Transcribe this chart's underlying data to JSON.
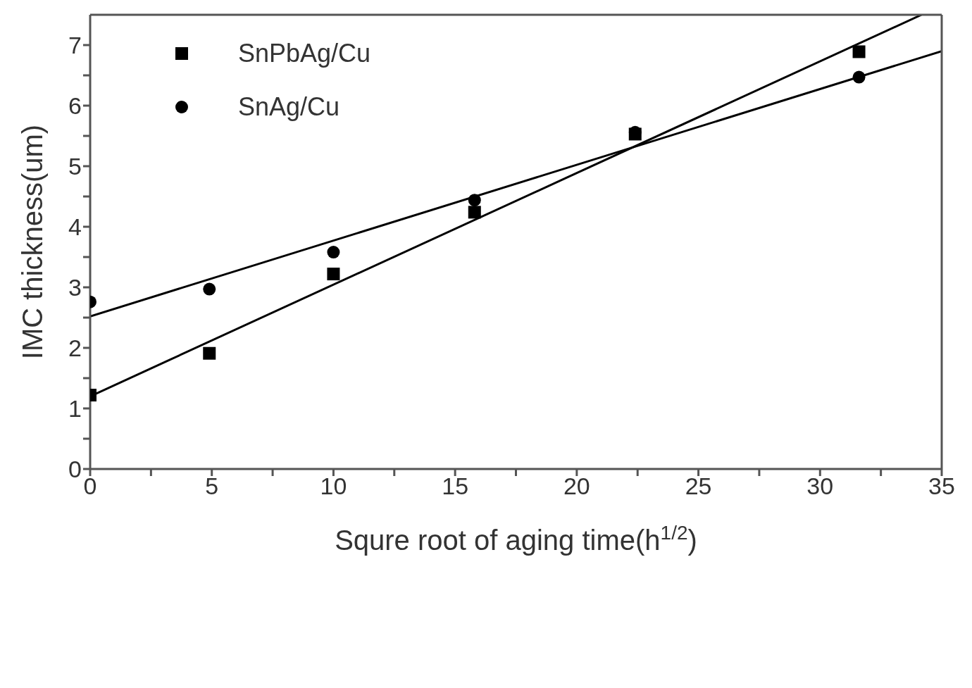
{
  "chart_data": {
    "type": "scatter",
    "xlabel": "Squre root of aging time(h$^{1/2}$)",
    "ylabel": "IMC thickness(um)",
    "xlim": [
      0,
      35
    ],
    "ylim": [
      0,
      7.5
    ],
    "xticks": [
      0,
      {
        "value": 2.5,
        "label": null
      },
      5,
      {
        "value": 7.5,
        "label": null
      },
      10,
      {
        "value": 12.5,
        "label": null
      },
      15,
      {
        "value": 17.5,
        "label": null
      },
      20,
      {
        "value": 22.5,
        "label": null
      },
      25,
      {
        "value": 27.5,
        "label": null
      },
      30,
      {
        "value": 32.5,
        "label": null
      },
      35
    ],
    "yticks": [
      0,
      {
        "value": 0.5,
        "label": null
      },
      1,
      {
        "value": 1.5,
        "label": null
      },
      2,
      {
        "value": 2.5,
        "label": null
      },
      3,
      {
        "value": 3.5,
        "label": null
      },
      4,
      {
        "value": 4.5,
        "label": null
      },
      5,
      {
        "value": 5.5,
        "label": null
      },
      6,
      {
        "value": 6.5,
        "label": null
      },
      7
    ],
    "legend": "top left",
    "series": [
      {
        "name": "SnPbAg/Cu",
        "color": "#000000",
        "marker": "square",
        "x": [
          0,
          4.9,
          10,
          15.8,
          22.4,
          31.6
        ],
        "values": [
          1.22,
          1.91,
          3.22,
          4.24,
          5.53,
          6.89
        ]
      },
      {
        "name": "SnAg/Cu",
        "color": "#000000",
        "marker": "circle",
        "x": [
          0,
          4.9,
          10,
          15.8,
          22.4,
          31.6
        ],
        "values": [
          2.76,
          2.97,
          3.58,
          4.44,
          5.56,
          6.47
        ]
      },
      {
        "type": "line",
        "color": "#000000",
        "line_style": "solid",
        "marker": "none",
        "x": [
          0,
          34.17
        ],
        "values": [
          1.2,
          7.5
        ]
      },
      {
        "type": "line",
        "color": "#000000",
        "line_style": "solid",
        "marker": "none",
        "x": [
          0,
          35
        ],
        "values": [
          2.52,
          6.9
        ]
      }
    ]
  }
}
